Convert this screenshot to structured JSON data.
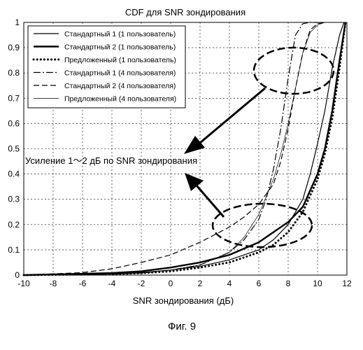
{
  "chart_data": {
    "type": "line",
    "title": "CDF для SNR зондирования",
    "xlabel": "SNR зондирования (дБ)",
    "ylabel": "",
    "xlim": [
      -10,
      12
    ],
    "ylim": [
      0,
      1
    ],
    "xticks": [
      "-10",
      "-8",
      "-6",
      "-4",
      "-2",
      "0",
      "2",
      "4",
      "6",
      "8",
      "10",
      "12"
    ],
    "yticks": [
      "0",
      "0.1",
      "0.2",
      "0.3",
      "0.4",
      "0.5",
      "0.6",
      "0.7",
      "0.8",
      "0.9",
      "1"
    ],
    "grid": true,
    "legend_position": "top-left",
    "series": [
      {
        "name": "Стандартный 1 (1 пользователь)",
        "style": "thin-solid",
        "x": [
          -10,
          -4,
          -2,
          0,
          2,
          4,
          6,
          7,
          8,
          9,
          9.5,
          10,
          10.5,
          11,
          11.5,
          11.8
        ],
        "y": [
          0,
          0.005,
          0.01,
          0.02,
          0.035,
          0.06,
          0.1,
          0.14,
          0.2,
          0.3,
          0.4,
          0.52,
          0.65,
          0.82,
          0.95,
          1
        ]
      },
      {
        "name": "Стандартный 2 (1 пользователь)",
        "style": "thick-solid",
        "x": [
          -10,
          -4,
          -2,
          0,
          2,
          4,
          6,
          7,
          8,
          8.5,
          9,
          10,
          10.5,
          11,
          11.5,
          11.9
        ],
        "y": [
          0,
          0.008,
          0.015,
          0.03,
          0.05,
          0.08,
          0.13,
          0.17,
          0.21,
          0.24,
          0.27,
          0.4,
          0.5,
          0.65,
          0.85,
          1
        ]
      },
      {
        "name": "Предложенный  (1 пользователь)",
        "style": "dotted",
        "x": [
          -10,
          -4,
          -2,
          0,
          2,
          4,
          6,
          7,
          8,
          8.5,
          9,
          10,
          10.5,
          11,
          11.5,
          11.9
        ],
        "y": [
          0,
          0.004,
          0.008,
          0.015,
          0.03,
          0.05,
          0.09,
          0.12,
          0.17,
          0.21,
          0.25,
          0.38,
          0.48,
          0.62,
          0.82,
          1
        ]
      },
      {
        "name": "Стандартный 1 (4 пользователя)",
        "style": "dash-dot",
        "x": [
          -10,
          -4,
          -2,
          0,
          2,
          4,
          5,
          6,
          6.5,
          7,
          7.5,
          8,
          8.5,
          9,
          9.5,
          10
        ],
        "y": [
          0,
          0.004,
          0.008,
          0.02,
          0.04,
          0.09,
          0.14,
          0.22,
          0.3,
          0.42,
          0.58,
          0.78,
          0.95,
          0.995,
          1,
          1
        ]
      },
      {
        "name": "Стандартный 2 (4 пользователя)",
        "style": "dashed",
        "x": [
          -10,
          -6,
          -4,
          -2,
          0,
          2,
          4,
          5,
          6,
          7,
          7.5,
          8,
          8.5,
          9,
          9.5,
          10,
          10.5
        ],
        "y": [
          0,
          0.01,
          0.025,
          0.05,
          0.08,
          0.13,
          0.19,
          0.23,
          0.28,
          0.36,
          0.45,
          0.58,
          0.74,
          0.88,
          0.97,
          0.995,
          1
        ]
      },
      {
        "name": "Предложенный (4 пользователя)",
        "style": "hairline",
        "x": [
          -10,
          -4,
          -2,
          0,
          2,
          4,
          5,
          6,
          7,
          7.5,
          8,
          8.5,
          9,
          9.5,
          10,
          10.5,
          11
        ],
        "y": [
          0,
          0.004,
          0.008,
          0.02,
          0.04,
          0.09,
          0.15,
          0.24,
          0.38,
          0.48,
          0.6,
          0.74,
          0.88,
          0.96,
          0.99,
          1,
          1
        ]
      }
    ],
    "annotations": {
      "gain_text": "Усиление 1～2 дБ по SNR зондирования"
    }
  },
  "figure_caption": "Фиг. 9"
}
